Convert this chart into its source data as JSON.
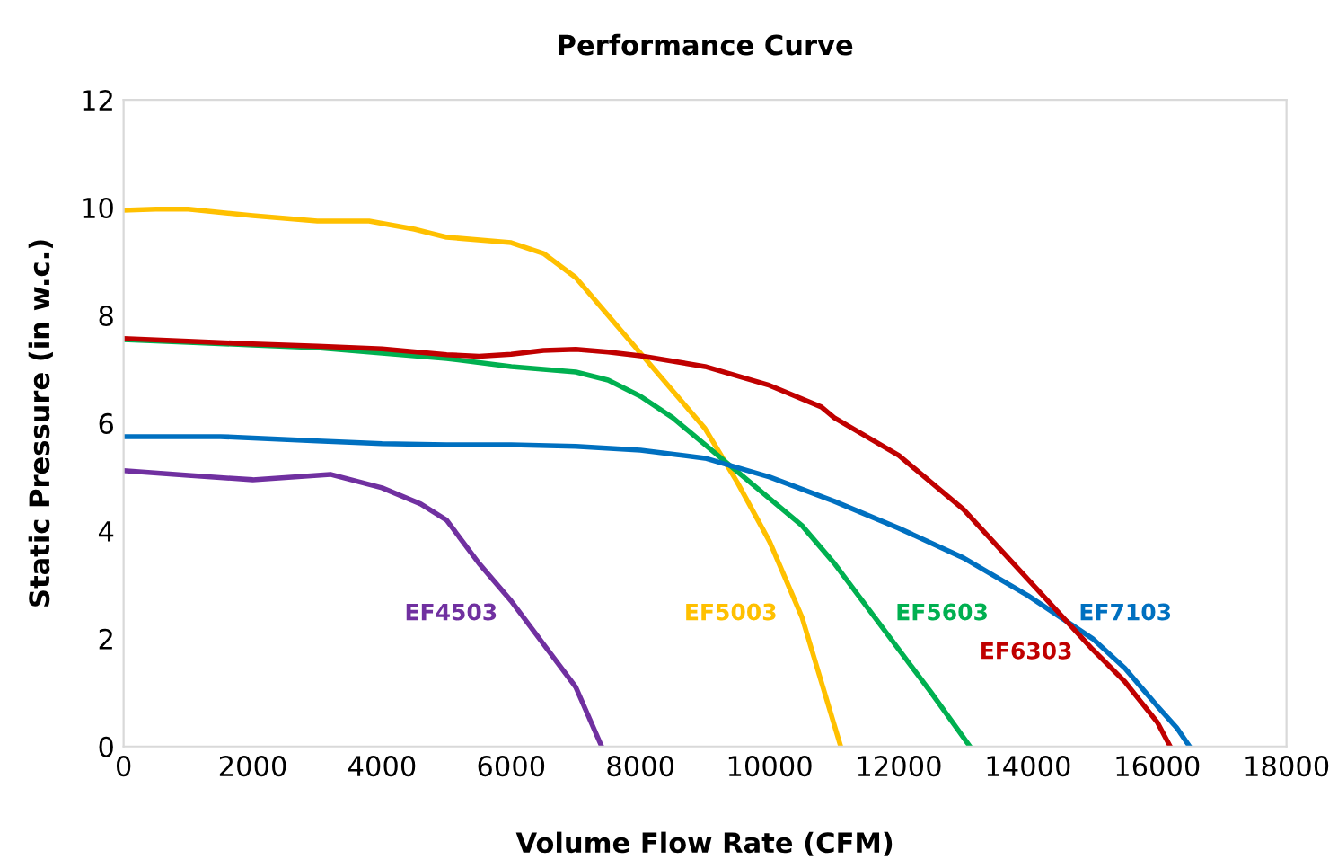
{
  "chart_data": {
    "type": "line",
    "title": "Performance Curve",
    "xlabel": "Volume Flow Rate (CFM)",
    "ylabel": "Static Pressure (in w.c.)",
    "xlim": [
      0,
      18000
    ],
    "xticks": [
      0,
      2000,
      4000,
      6000,
      8000,
      10000,
      12000,
      14000,
      16000,
      18000
    ],
    "ylim": [
      0,
      12
    ],
    "yticks": [
      0,
      2,
      4,
      6,
      8,
      10,
      12
    ],
    "grid": false,
    "legend": false,
    "marker": "none",
    "line_style": "solid",
    "series": [
      {
        "name": "EF4503",
        "color": "#7030a0",
        "x": [
          0,
          1000,
          2000,
          3200,
          4000,
          4600,
          5000,
          5500,
          6000,
          6500,
          7000,
          7400
        ],
        "values": [
          5.12,
          5.03,
          4.95,
          5.05,
          4.8,
          4.5,
          4.2,
          3.4,
          2.7,
          1.9,
          1.1,
          0
        ]
      },
      {
        "name": "EF5003",
        "color": "#ffc000",
        "x": [
          0,
          500,
          1000,
          2000,
          3000,
          3800,
          4500,
          5000,
          6000,
          6500,
          7000,
          7500,
          8000,
          8500,
          9000,
          9500,
          10000,
          10500,
          11100
        ],
        "values": [
          9.95,
          9.97,
          9.97,
          9.85,
          9.75,
          9.75,
          9.6,
          9.45,
          9.35,
          9.15,
          8.7,
          8.0,
          7.3,
          6.6,
          5.9,
          4.9,
          3.8,
          2.4,
          0
        ]
      },
      {
        "name": "EF5603",
        "color": "#00b050",
        "x": [
          0,
          1000,
          2000,
          3000,
          4000,
          5000,
          6000,
          6500,
          7000,
          7500,
          8000,
          8500,
          9000,
          9500,
          10000,
          10500,
          11000,
          11500,
          12000,
          12500,
          13100
        ],
        "values": [
          7.55,
          7.5,
          7.45,
          7.4,
          7.3,
          7.2,
          7.05,
          7.0,
          6.95,
          6.8,
          6.5,
          6.1,
          5.6,
          5.1,
          4.6,
          4.1,
          3.4,
          2.6,
          1.8,
          1.0,
          0
        ]
      },
      {
        "name": "EF7103",
        "color": "#0070c0",
        "x": [
          0,
          1500,
          3000,
          4000,
          5000,
          6000,
          7000,
          8000,
          9000,
          10000,
          11000,
          12000,
          13000,
          14000,
          15000,
          15500,
          16000,
          16300,
          16500
        ],
        "values": [
          5.75,
          5.75,
          5.67,
          5.62,
          5.6,
          5.6,
          5.57,
          5.5,
          5.35,
          5.0,
          4.55,
          4.05,
          3.5,
          2.8,
          2.0,
          1.45,
          0.75,
          0.35,
          0
        ]
      },
      {
        "name": "EF6303",
        "color": "#c00000",
        "x": [
          0,
          1000,
          2000,
          3000,
          4000,
          5000,
          5500,
          6000,
          6500,
          7000,
          7500,
          8000,
          9000,
          10000,
          10800,
          11000,
          12000,
          13000,
          14000,
          15000,
          15500,
          16000,
          16200
        ],
        "values": [
          7.57,
          7.52,
          7.47,
          7.43,
          7.38,
          7.27,
          7.24,
          7.28,
          7.35,
          7.37,
          7.32,
          7.25,
          7.05,
          6.7,
          6.3,
          6.1,
          5.4,
          4.4,
          3.1,
          1.8,
          1.2,
          0.45,
          0
        ]
      }
    ]
  }
}
